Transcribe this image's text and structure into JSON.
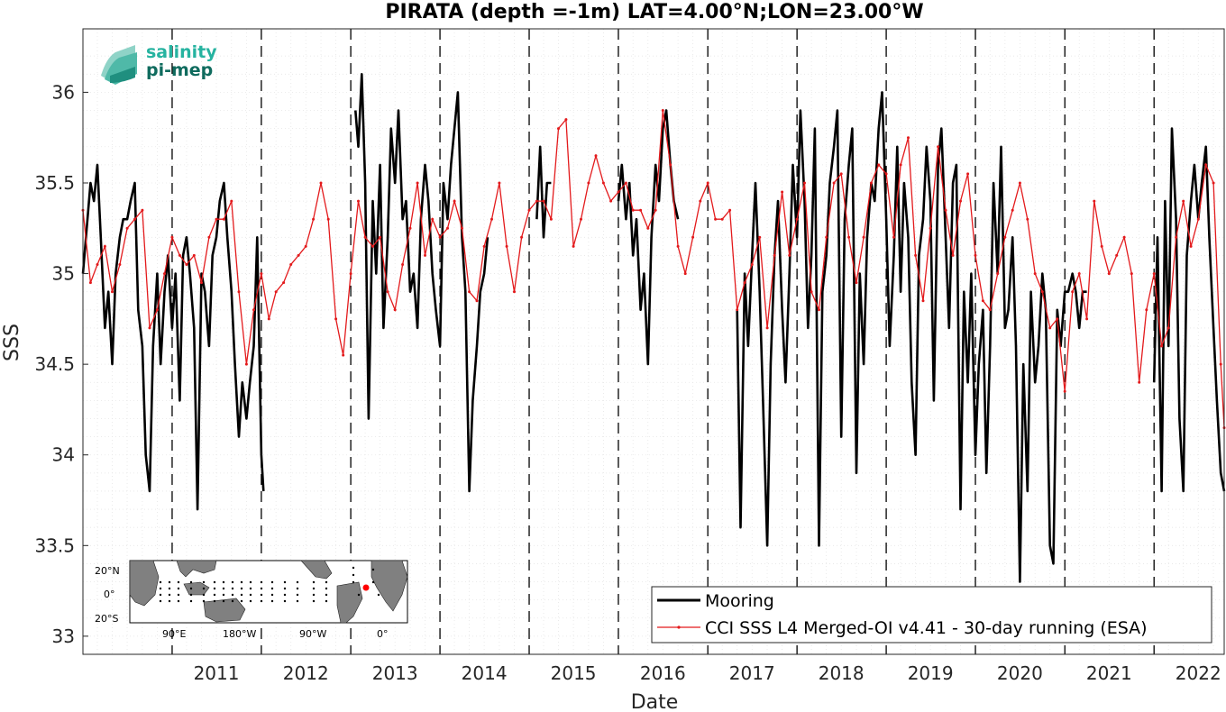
{
  "chart_data": {
    "type": "line",
    "title": "PIRATA (depth =-1m) LAT=4.00°N;LON=23.00°W",
    "xlabel": "Date",
    "ylabel": "SSS",
    "xlim": [
      "2010-01-01",
      "2022-10-15"
    ],
    "ylim": [
      32.9,
      36.35
    ],
    "grid": "on (dotted minor grid)",
    "legend_position": "bottom-right",
    "x_ticks": [
      "2011",
      "2012",
      "2013",
      "2014",
      "2015",
      "2016",
      "2017",
      "2018",
      "2019",
      "2020",
      "2021",
      "2022"
    ],
    "y_ticks": [
      "33",
      "33.5",
      "34",
      "34.5",
      "35",
      "35.5",
      "36"
    ],
    "vertical_dashed_lines": [
      "2011-01-01",
      "2012-01-01",
      "2013-01-01",
      "2014-01-01",
      "2015-01-01",
      "2016-01-01",
      "2017-01-01",
      "2018-01-01",
      "2019-01-01",
      "2020-01-01",
      "2021-01-01",
      "2022-01-01"
    ],
    "series": [
      {
        "name": "Mooring",
        "color": "#000000",
        "style": "thick line",
        "segments": [
          {
            "x": [
              "2010-01-01",
              "2010-02-01",
              "2010-02-15",
              "2010-03-01",
              "2010-03-15",
              "2010-04-01",
              "2010-04-15",
              "2010-05-01",
              "2010-05-15",
              "2010-06-01",
              "2010-06-15",
              "2010-07-01",
              "2010-07-15",
              "2010-08-01",
              "2010-08-15",
              "2010-09-01",
              "2010-09-15",
              "2010-10-01",
              "2010-10-15",
              "2010-11-01",
              "2010-11-15",
              "2010-12-01",
              "2010-12-15",
              "2011-01-01",
              "2011-01-15",
              "2011-02-01",
              "2011-02-15",
              "2011-03-01",
              "2011-03-15",
              "2011-04-01",
              "2011-04-15",
              "2011-05-01",
              "2011-05-15",
              "2011-06-01",
              "2011-06-15",
              "2011-07-01",
              "2011-07-15",
              "2011-08-01",
              "2011-08-15",
              "2011-09-01",
              "2011-09-15",
              "2011-10-01",
              "2011-10-15",
              "2011-11-01",
              "2011-11-15",
              "2011-12-01",
              "2011-12-15",
              "2012-01-01",
              "2012-01-10"
            ],
            "y": [
              35.0,
              35.5,
              35.4,
              35.6,
              35.2,
              34.7,
              34.9,
              34.5,
              35.0,
              35.2,
              35.3,
              35.3,
              35.4,
              35.5,
              34.8,
              34.6,
              34.0,
              33.8,
              34.6,
              35.0,
              34.5,
              34.9,
              35.1,
              34.7,
              35.0,
              34.3,
              35.1,
              35.2,
              35.0,
              34.7,
              33.7,
              35.0,
              34.9,
              34.6,
              35.1,
              35.2,
              35.4,
              35.5,
              35.2,
              34.9,
              34.5,
              34.1,
              34.4,
              34.2,
              34.4,
              34.6,
              35.2,
              34.0,
              33.8
            ]
          },
          {
            "x": [
              "2013-01-20",
              "2013-02-01",
              "2013-02-15",
              "2013-03-01",
              "2013-03-15",
              "2013-04-01",
              "2013-04-15",
              "2013-05-01",
              "2013-05-15",
              "2013-06-01",
              "2013-06-15",
              "2013-07-01",
              "2013-07-15",
              "2013-08-01",
              "2013-08-15",
              "2013-09-01",
              "2013-09-15",
              "2013-10-01",
              "2013-10-15",
              "2013-11-01",
              "2013-11-15",
              "2013-12-01",
              "2013-12-15",
              "2014-01-01",
              "2014-01-15",
              "2014-02-01",
              "2014-02-15",
              "2014-03-01",
              "2014-03-15",
              "2014-04-01",
              "2014-04-15",
              "2014-05-01",
              "2014-05-15",
              "2014-06-01",
              "2014-06-15",
              "2014-07-01",
              "2014-07-15"
            ],
            "y": [
              35.9,
              35.7,
              36.1,
              35.5,
              34.2,
              35.4,
              35.0,
              35.6,
              34.7,
              35.2,
              35.8,
              35.5,
              35.9,
              35.3,
              35.4,
              34.9,
              35.0,
              34.7,
              35.3,
              35.6,
              35.4,
              35.0,
              34.8,
              34.6,
              35.5,
              35.3,
              35.6,
              35.8,
              36.0,
              35.2,
              34.9,
              33.8,
              34.3,
              34.6,
              34.9,
              35.0,
              35.2
            ]
          },
          {
            "x": [
              "2015-02-01",
              "2015-02-15",
              "2015-03-01",
              "2015-03-15",
              "2015-04-01"
            ],
            "y": [
              35.3,
              35.7,
              35.2,
              35.5,
              35.5
            ]
          },
          {
            "x": [
              "2016-01-01",
              "2016-01-15",
              "2016-02-01",
              "2016-02-15",
              "2016-03-01",
              "2016-03-15",
              "2016-04-01",
              "2016-04-15",
              "2016-05-01",
              "2016-05-15",
              "2016-06-01",
              "2016-06-15",
              "2016-07-01",
              "2016-07-15",
              "2016-08-01",
              "2016-08-15",
              "2016-09-01"
            ],
            "y": [
              35.4,
              35.6,
              35.3,
              35.5,
              35.1,
              35.3,
              34.8,
              35.0,
              34.5,
              35.2,
              35.6,
              35.4,
              35.8,
              35.9,
              35.6,
              35.4,
              35.3
            ]
          },
          {
            "x": [
              "2017-05-01",
              "2017-05-15",
              "2017-06-01",
              "2017-06-15",
              "2017-07-01",
              "2017-07-15",
              "2017-08-01",
              "2017-08-15",
              "2017-09-01",
              "2017-09-15",
              "2017-10-01",
              "2017-10-15",
              "2017-11-01",
              "2017-11-15",
              "2017-12-01",
              "2017-12-15",
              "2018-01-01",
              "2018-01-15",
              "2018-02-01",
              "2018-02-15",
              "2018-03-01",
              "2018-03-15",
              "2018-04-01",
              "2018-04-15",
              "2018-05-01",
              "2018-05-15",
              "2018-06-01",
              "2018-06-15",
              "2018-07-01",
              "2018-07-15",
              "2018-08-01",
              "2018-08-15",
              "2018-09-01",
              "2018-09-15",
              "2018-10-01",
              "2018-10-15",
              "2018-11-01",
              "2018-11-15",
              "2018-12-01",
              "2018-12-15",
              "2019-01-01",
              "2019-01-15",
              "2019-02-01",
              "2019-02-15",
              "2019-03-01",
              "2019-03-15",
              "2019-04-01",
              "2019-04-15",
              "2019-05-01",
              "2019-05-15",
              "2019-06-01",
              "2019-06-15",
              "2019-07-01",
              "2019-07-15",
              "2019-08-01",
              "2019-08-15",
              "2019-09-01",
              "2019-09-15",
              "2019-10-01",
              "2019-10-15",
              "2019-11-01",
              "2019-11-15",
              "2019-12-01",
              "2019-12-15",
              "2020-01-01",
              "2020-01-15",
              "2020-02-01",
              "2020-02-15",
              "2020-03-01",
              "2020-03-15",
              "2020-04-01",
              "2020-04-15",
              "2020-05-01",
              "2020-05-15",
              "2020-06-01",
              "2020-06-15",
              "2020-07-01",
              "2020-07-15",
              "2020-08-01",
              "2020-08-15",
              "2020-09-01",
              "2020-09-15",
              "2020-10-01",
              "2020-10-15",
              "2020-11-01",
              "2020-11-15",
              "2020-12-01",
              "2020-12-15",
              "2021-01-01",
              "2021-01-15",
              "2021-02-01",
              "2021-02-15",
              "2021-03-01",
              "2021-03-15",
              "2021-04-01"
            ],
            "y": [
              34.8,
              33.6,
              35.0,
              34.6,
              35.1,
              35.5,
              34.9,
              34.3,
              33.5,
              34.5,
              35.1,
              35.4,
              34.8,
              34.4,
              35.0,
              35.6,
              35.2,
              35.9,
              35.4,
              34.7,
              35.1,
              35.8,
              33.5,
              34.9,
              35.1,
              35.5,
              35.7,
              35.9,
              34.1,
              35.3,
              35.6,
              35.8,
              33.9,
              35.0,
              34.5,
              35.2,
              35.5,
              35.4,
              35.8,
              36.0,
              35.3,
              34.6,
              35.1,
              35.7,
              34.9,
              35.5,
              35.2,
              34.4,
              34.0,
              35.1,
              35.3,
              35.7,
              35.4,
              34.3,
              35.6,
              35.8,
              35.2,
              34.7,
              35.5,
              35.6,
              33.7,
              34.9,
              34.4,
              35.0,
              34.0,
              34.5,
              34.8,
              33.9,
              34.6,
              35.5,
              35.0,
              35.7,
              34.7,
              34.8,
              35.2,
              34.6,
              33.3,
              34.5,
              33.8,
              34.9,
              34.4,
              34.6,
              35.0,
              34.8,
              33.5,
              33.4,
              34.8,
              34.6,
              34.9,
              34.9,
              35.0,
              34.9,
              34.7,
              34.9,
              34.9
            ]
          },
          {
            "x": [
              "2022-01-01",
              "2022-01-15",
              "2022-02-01",
              "2022-02-15",
              "2022-03-01",
              "2022-03-15",
              "2022-04-01",
              "2022-04-15",
              "2022-05-01",
              "2022-05-15",
              "2022-06-01",
              "2022-06-15",
              "2022-07-01",
              "2022-07-15",
              "2022-08-01",
              "2022-08-15",
              "2022-09-01",
              "2022-09-15",
              "2022-10-01",
              "2022-10-15"
            ],
            "y": [
              34.4,
              35.2,
              33.8,
              35.4,
              34.6,
              35.8,
              35.3,
              34.2,
              33.8,
              35.1,
              35.4,
              35.6,
              35.3,
              35.5,
              35.7,
              35.2,
              34.7,
              34.3,
              33.9,
              33.8
            ]
          }
        ]
      },
      {
        "name": "CCI SSS L4 Merged-OI v4.41 - 30-day running (ESA)",
        "color": "#e31a1c",
        "style": "thin line with point markers",
        "x": [
          "2010-01-01",
          "2010-02-01",
          "2010-03-01",
          "2010-04-01",
          "2010-05-01",
          "2010-06-01",
          "2010-07-01",
          "2010-08-01",
          "2010-09-01",
          "2010-10-01",
          "2010-11-01",
          "2010-12-01",
          "2011-01-01",
          "2011-02-01",
          "2011-03-01",
          "2011-04-01",
          "2011-05-01",
          "2011-06-01",
          "2011-07-01",
          "2011-08-01",
          "2011-09-01",
          "2011-10-01",
          "2011-11-01",
          "2011-12-01",
          "2012-01-01",
          "2012-02-01",
          "2012-03-01",
          "2012-04-01",
          "2012-05-01",
          "2012-06-01",
          "2012-07-01",
          "2012-08-01",
          "2012-09-01",
          "2012-10-01",
          "2012-11-01",
          "2012-12-01",
          "2013-01-01",
          "2013-02-01",
          "2013-03-01",
          "2013-04-01",
          "2013-05-01",
          "2013-06-01",
          "2013-07-01",
          "2013-08-01",
          "2013-09-01",
          "2013-10-01",
          "2013-11-01",
          "2013-12-01",
          "2014-01-01",
          "2014-02-01",
          "2014-03-01",
          "2014-04-01",
          "2014-05-01",
          "2014-06-01",
          "2014-07-01",
          "2014-08-01",
          "2014-09-01",
          "2014-10-01",
          "2014-11-01",
          "2014-12-01",
          "2015-01-01",
          "2015-02-01",
          "2015-03-01",
          "2015-04-01",
          "2015-05-01",
          "2015-06-01",
          "2015-07-01",
          "2015-08-01",
          "2015-09-01",
          "2015-10-01",
          "2015-11-01",
          "2015-12-01",
          "2016-01-01",
          "2016-02-01",
          "2016-03-01",
          "2016-04-01",
          "2016-05-01",
          "2016-06-01",
          "2016-07-01",
          "2016-08-01",
          "2016-09-01",
          "2016-10-01",
          "2016-11-01",
          "2016-12-01",
          "2017-01-01",
          "2017-02-01",
          "2017-03-01",
          "2017-04-01",
          "2017-05-01",
          "2017-06-01",
          "2017-07-01",
          "2017-08-01",
          "2017-09-01",
          "2017-10-01",
          "2017-11-01",
          "2017-12-01",
          "2018-01-01",
          "2018-02-01",
          "2018-03-01",
          "2018-04-01",
          "2018-05-01",
          "2018-06-01",
          "2018-07-01",
          "2018-08-01",
          "2018-09-01",
          "2018-10-01",
          "2018-11-01",
          "2018-12-01",
          "2019-01-01",
          "2019-02-01",
          "2019-03-01",
          "2019-04-01",
          "2019-05-01",
          "2019-06-01",
          "2019-07-01",
          "2019-08-01",
          "2019-09-01",
          "2019-10-01",
          "2019-11-01",
          "2019-12-01",
          "2020-01-01",
          "2020-02-01",
          "2020-03-01",
          "2020-04-01",
          "2020-05-01",
          "2020-06-01",
          "2020-07-01",
          "2020-08-01",
          "2020-09-01",
          "2020-10-01",
          "2020-11-01",
          "2020-12-01",
          "2021-01-01",
          "2021-02-01",
          "2021-03-01",
          "2021-04-01",
          "2021-05-01",
          "2021-06-01",
          "2021-07-01",
          "2021-08-01",
          "2021-09-01",
          "2021-10-01",
          "2021-11-01",
          "2021-12-01",
          "2022-01-01",
          "2022-02-01",
          "2022-03-01",
          "2022-04-01",
          "2022-05-01",
          "2022-06-01",
          "2022-07-01",
          "2022-08-01",
          "2022-09-01",
          "2022-10-01",
          "2022-10-15"
        ],
        "y": [
          35.35,
          34.95,
          35.05,
          35.15,
          34.9,
          35.05,
          35.25,
          35.3,
          35.35,
          34.7,
          34.8,
          35.0,
          35.2,
          35.1,
          35.05,
          35.1,
          34.95,
          35.2,
          35.3,
          35.3,
          35.4,
          34.9,
          34.5,
          34.8,
          35.0,
          34.75,
          34.9,
          34.95,
          35.05,
          35.1,
          35.15,
          35.3,
          35.5,
          35.3,
          34.75,
          34.55,
          35.0,
          35.4,
          35.2,
          35.15,
          35.2,
          34.9,
          34.8,
          35.05,
          35.25,
          35.5,
          35.1,
          35.3,
          35.2,
          35.25,
          35.4,
          35.25,
          34.9,
          34.85,
          35.15,
          35.3,
          35.5,
          35.15,
          34.9,
          35.2,
          35.35,
          35.4,
          35.4,
          35.3,
          35.8,
          35.85,
          35.15,
          35.3,
          35.5,
          35.65,
          35.5,
          35.4,
          35.45,
          35.5,
          35.35,
          35.35,
          35.25,
          35.35,
          35.9,
          35.6,
          35.15,
          35.0,
          35.2,
          35.4,
          35.5,
          35.3,
          35.3,
          35.35,
          34.8,
          34.95,
          35.05,
          35.2,
          34.7,
          35.1,
          35.45,
          35.1,
          35.3,
          35.5,
          34.9,
          34.8,
          35.2,
          35.5,
          35.55,
          35.2,
          34.95,
          35.2,
          35.5,
          35.6,
          35.55,
          35.2,
          35.6,
          35.75,
          35.1,
          34.85,
          35.25,
          35.7,
          35.35,
          35.1,
          35.4,
          35.55,
          35.1,
          34.85,
          34.8,
          35.0,
          35.2,
          35.35,
          35.5,
          35.3,
          35.0,
          34.9,
          34.7,
          34.75,
          34.35,
          34.9,
          35.0,
          34.75,
          35.4,
          35.15,
          35.0,
          35.1,
          35.2,
          35.0,
          34.4,
          34.8,
          35.0,
          34.6,
          34.7,
          35.2,
          35.4,
          35.15,
          35.3,
          35.6,
          35.5,
          34.5,
          34.15
        ]
      }
    ]
  },
  "legend": {
    "mooring_label": "Mooring",
    "cci_label": "CCI SSS L4 Merged-OI v4.41 - 30-day running (ESA)"
  },
  "logo": {
    "line1": "salinity",
    "line2": "pi-mep",
    "color1": "#26b3a0",
    "color2": "#0f6b5e"
  },
  "inset_map": {
    "lat_labels": [
      "20°N",
      "0°",
      "20°S"
    ],
    "lon_labels": [
      "90°E",
      "180°W",
      "90°W",
      "0°"
    ],
    "ocean_color": "#ffffff",
    "land_color": "#808080",
    "marker_color": "#ff0000"
  },
  "colors": {
    "mooring": "#000000",
    "cci": "#e31a1c",
    "grid": "#d9d9d9",
    "dashed": "#000000"
  }
}
